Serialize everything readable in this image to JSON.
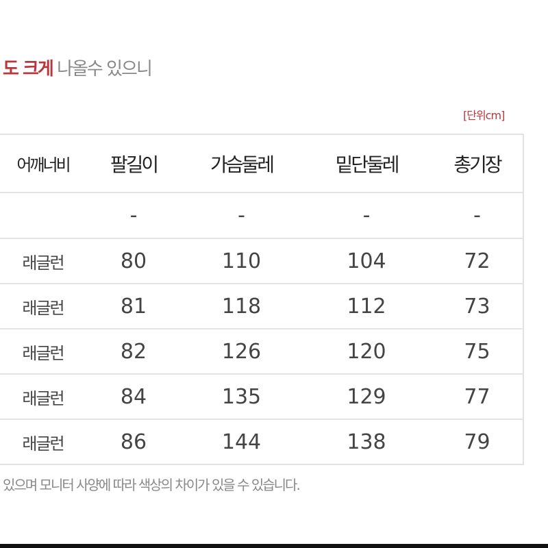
{
  "notice": {
    "red": "도 크게",
    "rest": " 나올수 있으니"
  },
  "unit": "[단위cm]",
  "table": {
    "headers": [
      "어깨너비",
      "팔길이",
      "가슴둘레",
      "밑단둘레",
      "총기장"
    ],
    "rows": [
      [
        "",
        "-",
        "-",
        "-",
        "-"
      ],
      [
        "래글런",
        "80",
        "110",
        "104",
        "72"
      ],
      [
        "래글런",
        "81",
        "118",
        "112",
        "73"
      ],
      [
        "래글런",
        "82",
        "126",
        "120",
        "75"
      ],
      [
        "래글런",
        "84",
        "135",
        "129",
        "77"
      ],
      [
        "래글런",
        "86",
        "144",
        "138",
        "79"
      ]
    ]
  },
  "footer": "있으며 모니터 사양에 따라 색상의 차이가 있을 수 있습니다."
}
